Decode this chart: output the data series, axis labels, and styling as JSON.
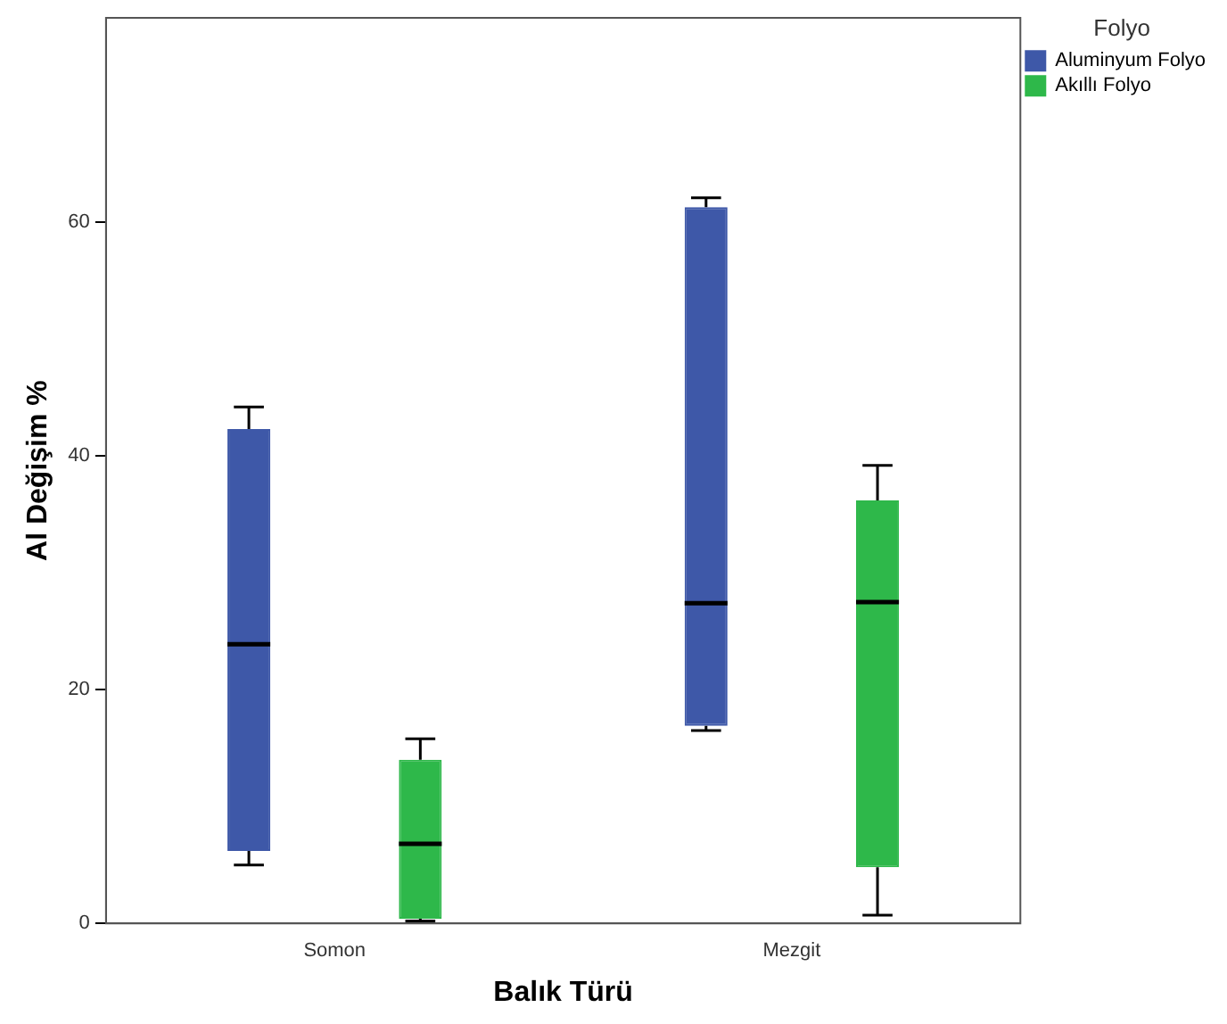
{
  "chart_data": {
    "type": "box",
    "xlabel": "Balık Türü",
    "ylabel": "Al Değişim %",
    "legend_title": "Folyo",
    "legend": "top right",
    "grid": false,
    "categories": [
      "Somon",
      "Mezgit"
    ],
    "series": [
      {
        "name": "Aluminyum Folyo",
        "color": "#3e58a8",
        "boxes": [
          {
            "low": 5.0,
            "q1": 6.2,
            "median": 23.9,
            "q3": 42.3,
            "high": 44.2
          },
          {
            "low": 16.5,
            "q1": 16.9,
            "median": 27.4,
            "q3": 61.3,
            "high": 62.1
          }
        ]
      },
      {
        "name": "Akıllı Folyo",
        "color": "#2eb84a",
        "boxes": [
          {
            "low": 0.2,
            "q1": 0.4,
            "median": 6.8,
            "q3": 14.0,
            "high": 15.8
          },
          {
            "low": 0.7,
            "q1": 4.8,
            "median": 27.5,
            "q3": 36.2,
            "high": 39.2
          }
        ]
      }
    ],
    "ylim": [
      0,
      77.5
    ],
    "yticks": [
      0,
      20,
      40,
      60
    ]
  }
}
